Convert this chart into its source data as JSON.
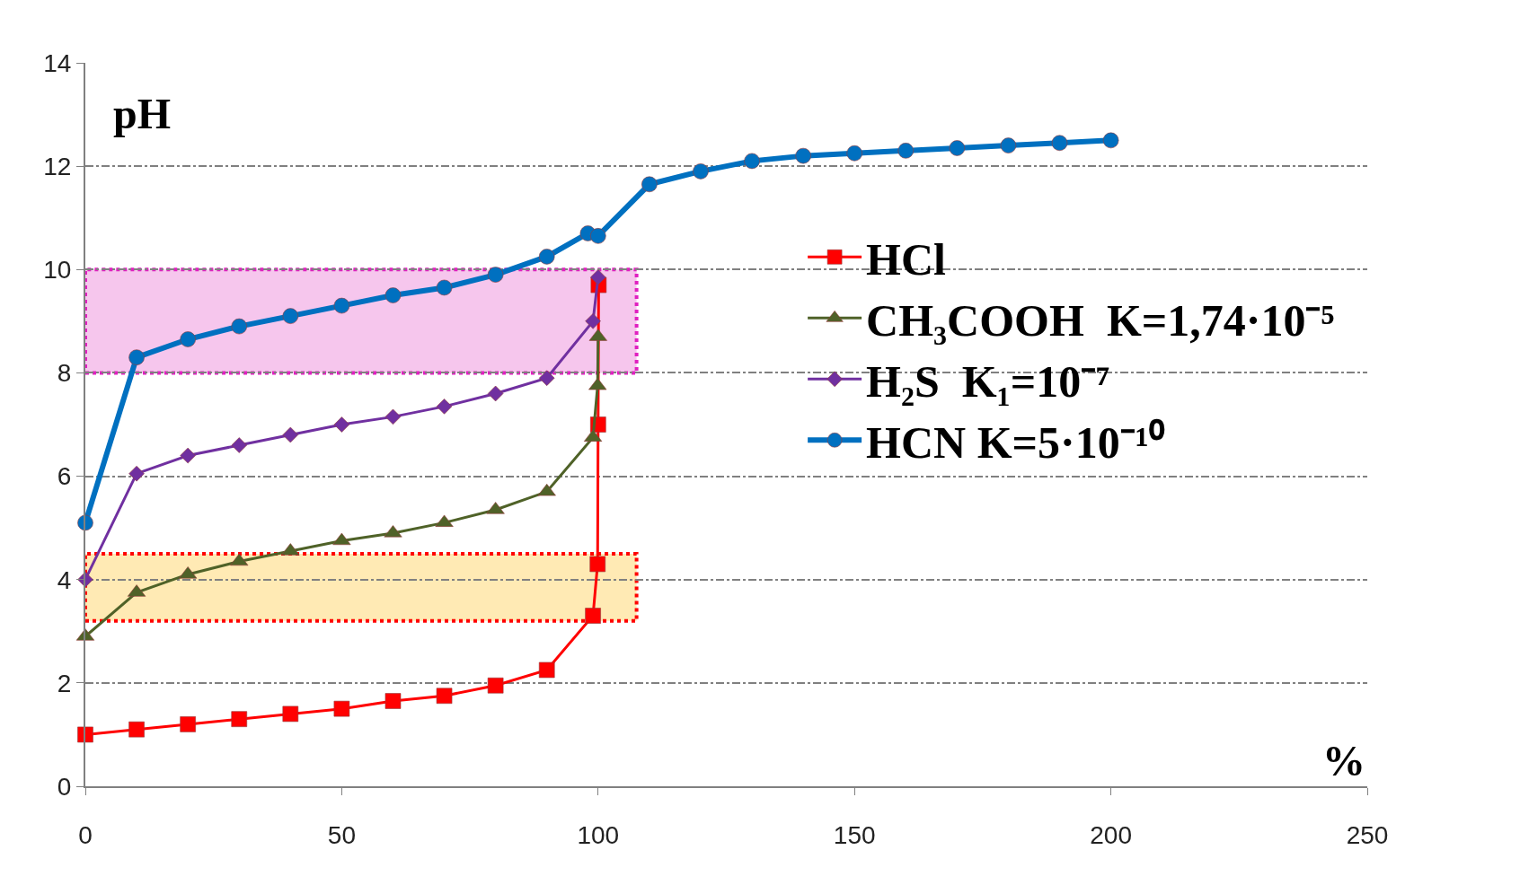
{
  "chart_data": {
    "type": "line",
    "xlabel": "%",
    "ylabel": "pH",
    "xlim": [
      0,
      250
    ],
    "xticks": [
      0,
      50,
      100,
      150,
      200,
      250
    ],
    "ylim": [
      0,
      14
    ],
    "yticks": [
      0,
      2,
      4,
      6,
      8,
      10,
      12,
      14
    ],
    "grid": "y",
    "legend": "right",
    "line_style": "solid",
    "series": [
      {
        "name": "HCl",
        "color": "#ff0000",
        "marker": "square",
        "x": [
          0,
          10,
          20,
          30,
          40,
          50,
          60,
          70,
          80,
          90,
          99,
          99.9,
          100,
          100.1
        ],
        "values": [
          1.0,
          1.1,
          1.2,
          1.3,
          1.4,
          1.5,
          1.65,
          1.75,
          1.95,
          2.25,
          3.3,
          4.3,
          7.0,
          9.7
        ]
      },
      {
        "name": "CH₃COOH  K=1,74·10⁻⁵",
        "color": "#4f6228",
        "marker": "triangle",
        "x": [
          0,
          10,
          20,
          30,
          40,
          50,
          60,
          70,
          80,
          90,
          99,
          99.9,
          100
        ],
        "values": [
          2.9,
          3.75,
          4.1,
          4.35,
          4.55,
          4.75,
          4.9,
          5.1,
          5.35,
          5.7,
          6.75,
          7.75,
          8.7
        ]
      },
      {
        "name": "H₂S  K₁=10⁻⁷",
        "color": "#7030a0",
        "marker": "diamond",
        "x": [
          0,
          10,
          20,
          30,
          40,
          50,
          60,
          70,
          80,
          90,
          99,
          100
        ],
        "values": [
          4.0,
          6.05,
          6.4,
          6.6,
          6.8,
          7.0,
          7.15,
          7.35,
          7.6,
          7.9,
          9.0,
          9.85
        ]
      },
      {
        "name": "HCN K=5·10⁻¹⁰",
        "color": "#0070c0",
        "marker": "circle",
        "x": [
          0,
          10,
          20,
          30,
          40,
          50,
          60,
          70,
          80,
          90,
          98,
          100,
          110,
          120,
          130,
          140,
          150,
          160,
          170,
          180,
          190,
          200
        ],
        "values": [
          5.1,
          8.3,
          8.65,
          8.9,
          9.1,
          9.3,
          9.5,
          9.65,
          9.9,
          10.25,
          10.7,
          10.65,
          11.65,
          11.9,
          12.1,
          12.2,
          12.25,
          12.3,
          12.35,
          12.4,
          12.45,
          12.5
        ]
      }
    ],
    "bands": [
      {
        "axis": "y",
        "from": 8,
        "to": 10,
        "color": "#e020c0"
      },
      {
        "axis": "y",
        "from": 3.2,
        "to": 4.5,
        "color": "#ff0000"
      }
    ]
  }
}
